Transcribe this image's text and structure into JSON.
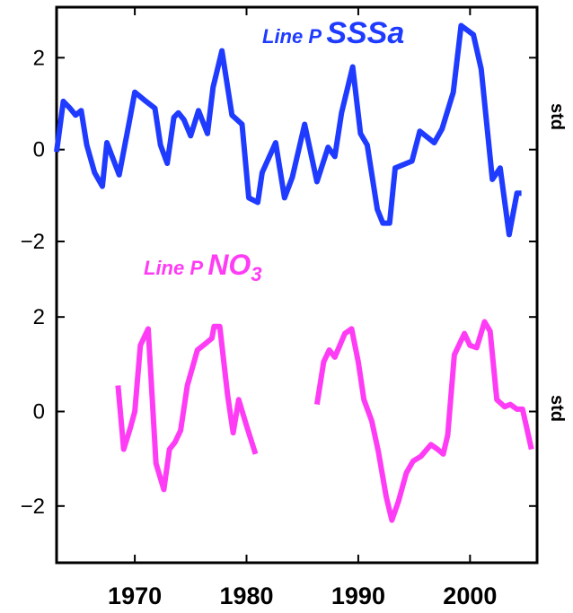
{
  "chart_data": {
    "type": "line",
    "xlim": [
      1963,
      2006
    ],
    "x_ticks": [
      1970,
      1980,
      1990,
      2000
    ],
    "x_tick_labels": [
      "1970",
      "1980",
      "1990",
      "2000"
    ],
    "panels": [
      {
        "series_name": "SSSa",
        "label_prefix": "Line P ",
        "label_main": "SSSa",
        "label_sub": "",
        "color": "#1f3bff",
        "ylim": [
          -2.8,
          3.1
        ],
        "y_ticks": [
          -2,
          0,
          2
        ],
        "y_tick_labels": [
          "−2",
          "0",
          "2"
        ],
        "side_label": "std",
        "segments": [
          [
            [
              1963,
              -0.05
            ],
            [
              1963.6,
              1.05
            ],
            [
              1964.2,
              0.9
            ],
            [
              1964.7,
              0.75
            ],
            [
              1965.2,
              0.85
            ],
            [
              1965.7,
              0.1
            ],
            [
              1966.4,
              -0.5
            ],
            [
              1967.1,
              -0.8
            ],
            [
              1967.5,
              0.15
            ],
            [
              1968.6,
              -0.55
            ],
            [
              1969.5,
              0.6
            ],
            [
              1970.0,
              1.25
            ],
            [
              1971.0,
              1.05
            ],
            [
              1971.8,
              0.9
            ],
            [
              1972.3,
              0.1
            ],
            [
              1972.9,
              -0.3
            ],
            [
              1973.5,
              0.7
            ],
            [
              1973.9,
              0.8
            ],
            [
              1974.4,
              0.65
            ],
            [
              1975.0,
              0.3
            ],
            [
              1975.7,
              0.85
            ],
            [
              1976.5,
              0.35
            ],
            [
              1977.0,
              1.35
            ],
            [
              1977.8,
              2.15
            ],
            [
              1978.7,
              0.75
            ],
            [
              1979.6,
              0.55
            ],
            [
              1980.2,
              -1.05
            ],
            [
              1981.0,
              -1.15
            ],
            [
              1981.4,
              -0.5
            ],
            [
              1982.6,
              0.15
            ],
            [
              1983.4,
              -1.05
            ],
            [
              1984.1,
              -0.6
            ],
            [
              1985.2,
              0.55
            ],
            [
              1986.3,
              -0.7
            ],
            [
              1987.3,
              0.05
            ],
            [
              1987.9,
              -0.15
            ],
            [
              1988.5,
              0.8
            ],
            [
              1989.5,
              1.8
            ],
            [
              1990.2,
              0.35
            ],
            [
              1990.8,
              0.1
            ],
            [
              1991.7,
              -1.3
            ],
            [
              1992.2,
              -1.6
            ],
            [
              1992.8,
              -1.6
            ],
            [
              1993.3,
              -0.4
            ],
            [
              1994.8,
              -0.25
            ],
            [
              1995.5,
              0.4
            ],
            [
              1996.8,
              0.15
            ],
            [
              1997.5,
              0.45
            ],
            [
              1998.5,
              1.25
            ],
            [
              1999.2,
              2.7
            ],
            [
              2000.3,
              2.5
            ],
            [
              2001.0,
              1.75
            ],
            [
              2002.0,
              -0.65
            ],
            [
              2002.7,
              -0.4
            ],
            [
              2003.5,
              -1.85
            ],
            [
              2004.2,
              -0.95
            ],
            [
              2004.6,
              -0.95
            ]
          ]
        ]
      },
      {
        "series_name": "NO3",
        "label_prefix": "Line P ",
        "label_main": "NO",
        "label_sub": "3",
        "color": "#ff3cf5",
        "ylim": [
          -3.2,
          3.2
        ],
        "y_ticks": [
          -2,
          0,
          2
        ],
        "y_tick_labels": [
          "−2",
          "0",
          "2"
        ],
        "side_label": "std",
        "segments": [
          [
            [
              1968.5,
              0.55
            ],
            [
              1969.0,
              -0.8
            ],
            [
              1969.6,
              -0.35
            ],
            [
              1970.0,
              0.0
            ],
            [
              1970.5,
              1.4
            ],
            [
              1971.2,
              1.75
            ],
            [
              1971.9,
              -1.1
            ],
            [
              1972.6,
              -1.65
            ],
            [
              1973.1,
              -0.8
            ],
            [
              1973.6,
              -0.65
            ],
            [
              1974.1,
              -0.4
            ],
            [
              1974.7,
              0.55
            ],
            [
              1975.6,
              1.3
            ],
            [
              1976.4,
              1.45
            ],
            [
              1976.9,
              1.55
            ],
            [
              1977.1,
              1.8
            ],
            [
              1977.6,
              1.8
            ],
            [
              1978.3,
              0.35
            ],
            [
              1978.8,
              -0.45
            ],
            [
              1979.3,
              0.25
            ],
            [
              1980.0,
              -0.3
            ],
            [
              1980.8,
              -0.9
            ]
          ],
          [
            [
              1986.3,
              0.15
            ],
            [
              1986.9,
              1.05
            ],
            [
              1987.4,
              1.3
            ],
            [
              1987.9,
              1.15
            ],
            [
              1988.8,
              1.65
            ],
            [
              1989.4,
              1.75
            ],
            [
              1990.0,
              1.05
            ],
            [
              1990.5,
              0.25
            ],
            [
              1991.2,
              -0.2
            ],
            [
              1991.8,
              -0.85
            ],
            [
              1992.5,
              -1.8
            ],
            [
              1993.0,
              -2.3
            ],
            [
              1993.6,
              -1.9
            ],
            [
              1994.3,
              -1.3
            ],
            [
              1994.9,
              -1.05
            ],
            [
              1995.6,
              -0.95
            ],
            [
              1996.5,
              -0.7
            ],
            [
              1997.1,
              -0.8
            ],
            [
              1997.6,
              -0.9
            ],
            [
              1998.0,
              -0.5
            ],
            [
              1998.6,
              1.2
            ],
            [
              1999.5,
              1.65
            ],
            [
              2000.0,
              1.4
            ],
            [
              2000.6,
              1.35
            ],
            [
              2001.3,
              1.9
            ],
            [
              2001.8,
              1.7
            ],
            [
              2002.4,
              0.25
            ],
            [
              2003.1,
              0.1
            ],
            [
              2003.6,
              0.15
            ],
            [
              2004.2,
              0.05
            ],
            [
              2004.7,
              0.05
            ],
            [
              2005.5,
              -0.8
            ]
          ]
        ]
      }
    ]
  }
}
